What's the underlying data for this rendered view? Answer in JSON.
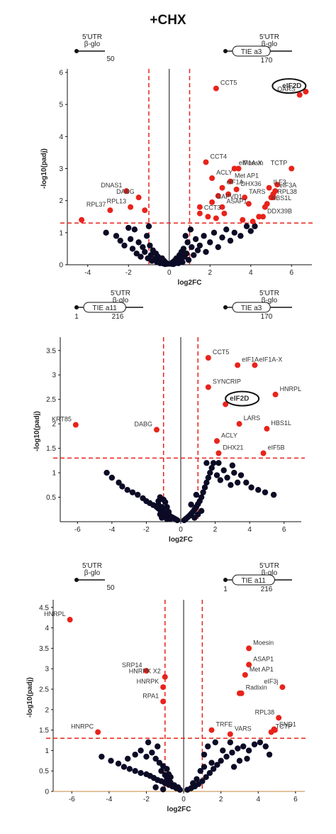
{
  "figure_title": "+CHX",
  "colors": {
    "significant": "#e8231b",
    "nonsignificant": "#0b0b26",
    "threshold": "#e8231b",
    "axis": "#111111"
  },
  "chart_data": [
    {
      "type": "scatter",
      "xlabel": "log2FC",
      "ylabel": "-log10(padj)",
      "xlim": [
        -5,
        7
      ],
      "ylim": [
        0,
        6
      ],
      "xticks": [
        -4,
        -2,
        0,
        2,
        4,
        6
      ],
      "yticks": [
        0,
        1,
        2,
        3,
        4,
        5,
        6
      ],
      "thresholds": {
        "x": [
          -1,
          1
        ],
        "y": 1.3
      },
      "constructs": [
        {
          "utr": "5'UTR",
          "reporter": "β-glo",
          "tag": "",
          "start": "",
          "end": "50",
          "side": "left"
        },
        {
          "utr": "5'UTR",
          "reporter": "β-glo",
          "tag": "TIE a3",
          "start": "",
          "end": "170",
          "side": "right"
        }
      ],
      "labeled_points": [
        {
          "label": "eIF2D",
          "x": 6.7,
          "y": 5.4,
          "circled": true
        },
        {
          "label": "QARS",
          "x": 6.4,
          "y": 5.3
        },
        {
          "label": "CCT5",
          "x": 2.3,
          "y": 5.5
        },
        {
          "label": "CCT4",
          "x": 1.8,
          "y": 3.2
        },
        {
          "label": "eIF1A-X",
          "x": 3.2,
          "y": 3.0
        },
        {
          "label": "Moesin",
          "x": 3.4,
          "y": 3.0
        },
        {
          "label": "TCTP",
          "x": 6.0,
          "y": 3.0
        },
        {
          "label": "ACLY",
          "x": 2.1,
          "y": 2.7
        },
        {
          "label": "Met AP1",
          "x": 3.0,
          "y": 2.6
        },
        {
          "label": "eIF1A",
          "x": 2.6,
          "y": 2.4
        },
        {
          "label": "ILF3",
          "x": 4.9,
          "y": 2.4
        },
        {
          "label": "DHX36",
          "x": 3.3,
          "y": 2.35
        },
        {
          "label": "eIF3A",
          "x": 5.2,
          "y": 2.3
        },
        {
          "label": "TARS",
          "x": 3.7,
          "y": 2.1
        },
        {
          "label": "RPL38",
          "x": 5.1,
          "y": 2.1
        },
        {
          "label": "GAPVD1",
          "x": 2.1,
          "y": 1.95
        },
        {
          "label": "HBS1L",
          "x": 4.8,
          "y": 1.9
        },
        {
          "label": "ASAP1",
          "x": 2.6,
          "y": 1.8
        },
        {
          "label": "CCT3",
          "x": 1.5,
          "y": 1.6
        },
        {
          "label": "DDX39B",
          "x": 4.6,
          "y": 1.5
        },
        {
          "label": "DNAS1",
          "x": -2.1,
          "y": 2.3
        },
        {
          "label": "DABG",
          "x": -1.5,
          "y": 2.1
        },
        {
          "label": "RPL13",
          "x": -1.9,
          "y": 1.8
        },
        {
          "label": "RPL37",
          "x": -2.9,
          "y": 1.7
        }
      ],
      "unlabeled_significant": [
        [
          -4.3,
          1.4
        ],
        [
          -1.2,
          1.7
        ],
        [
          1.9,
          1.5
        ],
        [
          2.3,
          1.45
        ],
        [
          2.7,
          1.6
        ],
        [
          3.6,
          1.4
        ],
        [
          4.1,
          1.35
        ],
        [
          4.4,
          1.5
        ],
        [
          5.0,
          2.1
        ],
        [
          4.7,
          1.8
        ],
        [
          5.3,
          2.5
        ],
        [
          5.1,
          2.2
        ],
        [
          3.9,
          1.9
        ],
        [
          2.4,
          2.15
        ],
        [
          2.9,
          2.2
        ],
        [
          1.5,
          1.8
        ]
      ],
      "nonsignificant": [
        [
          -3.1,
          1.0
        ],
        [
          -2.6,
          0.9
        ],
        [
          -2.4,
          0.75
        ],
        [
          -2.2,
          0.6
        ],
        [
          -1.9,
          0.8
        ],
        [
          -1.8,
          0.5
        ],
        [
          -1.7,
          1.1
        ],
        [
          -1.6,
          0.35
        ],
        [
          -1.5,
          0.7
        ],
        [
          -1.4,
          0.25
        ],
        [
          -1.3,
          0.55
        ],
        [
          -1.2,
          0.4
        ],
        [
          -1.1,
          0.9
        ],
        [
          -1.05,
          0.2
        ],
        [
          -0.95,
          0.6
        ],
        [
          -0.9,
          0.3
        ],
        [
          -0.85,
          0.12
        ],
        [
          -0.8,
          0.45
        ],
        [
          -0.7,
          0.18
        ],
        [
          -0.65,
          0.35
        ],
        [
          -0.6,
          0.08
        ],
        [
          -0.55,
          0.25
        ],
        [
          -0.5,
          0.15
        ],
        [
          -0.45,
          0.05
        ],
        [
          -0.4,
          0.1
        ],
        [
          -0.35,
          0.2
        ],
        [
          -0.3,
          0.04
        ],
        [
          -0.25,
          0.12
        ],
        [
          -0.2,
          0.02
        ],
        [
          -0.15,
          0.06
        ],
        [
          -0.1,
          0.03
        ],
        [
          0.1,
          0.03
        ],
        [
          0.15,
          0.07
        ],
        [
          0.2,
          0.02
        ],
        [
          0.25,
          0.12
        ],
        [
          0.3,
          0.05
        ],
        [
          0.35,
          0.2
        ],
        [
          0.4,
          0.1
        ],
        [
          0.45,
          0.05
        ],
        [
          0.5,
          0.3
        ],
        [
          0.55,
          0.15
        ],
        [
          0.6,
          0.4
        ],
        [
          0.65,
          0.08
        ],
        [
          0.7,
          0.5
        ],
        [
          0.75,
          0.25
        ],
        [
          0.8,
          0.9
        ],
        [
          0.85,
          0.35
        ],
        [
          0.9,
          0.7
        ],
        [
          0.95,
          0.15
        ],
        [
          1.05,
          1.1
        ],
        [
          1.1,
          0.55
        ],
        [
          1.2,
          0.3
        ],
        [
          1.3,
          0.8
        ],
        [
          1.4,
          0.45
        ],
        [
          1.5,
          0.6
        ],
        [
          1.7,
          0.9
        ],
        [
          1.8,
          0.4
        ],
        [
          2.0,
          0.7
        ],
        [
          2.2,
          1.0
        ],
        [
          2.4,
          0.55
        ],
        [
          2.6,
          0.85
        ],
        [
          2.8,
          1.1
        ],
        [
          3.0,
          0.75
        ],
        [
          3.2,
          1.0
        ],
        [
          3.5,
          0.9
        ],
        [
          3.8,
          1.2
        ],
        [
          4.0,
          1.05
        ],
        [
          4.2,
          1.2
        ],
        [
          -1.0,
          1.2
        ],
        [
          -2.0,
          1.15
        ]
      ]
    },
    {
      "type": "scatter",
      "xlabel": "log2FC",
      "ylabel": "-log10(padj)",
      "xlim": [
        -7,
        7
      ],
      "ylim": [
        0,
        3.7
      ],
      "xticks": [
        -6,
        -4,
        -2,
        0,
        2,
        4,
        6
      ],
      "yticks": [
        0.5,
        1,
        1.5,
        2,
        2.5,
        3,
        3.5
      ],
      "thresholds": {
        "x": [
          -1,
          1
        ],
        "y": 1.3
      },
      "constructs": [
        {
          "utr": "5'UTR",
          "reporter": "β-glo",
          "tag": "TIE a11",
          "start": "1",
          "end": "216",
          "side": "left"
        },
        {
          "utr": "5'UTR",
          "reporter": "β-glo",
          "tag": "TIE a3",
          "start": "",
          "end": "170",
          "side": "right"
        }
      ],
      "labeled_points": [
        {
          "label": "CCT5",
          "x": 1.6,
          "y": 3.35
        },
        {
          "label": "eIF1A",
          "x": 3.3,
          "y": 3.2
        },
        {
          "label": "eIF1A-X",
          "x": 4.3,
          "y": 3.2
        },
        {
          "label": "SYNCRIP",
          "x": 1.6,
          "y": 2.75
        },
        {
          "label": "HNRPL",
          "x": 5.5,
          "y": 2.6
        },
        {
          "label": "eIF2D",
          "x": 2.6,
          "y": 2.4,
          "circled": true
        },
        {
          "label": "LARS",
          "x": 3.4,
          "y": 2.0
        },
        {
          "label": "HBS1L",
          "x": 5.0,
          "y": 1.9
        },
        {
          "label": "ACLY",
          "x": 2.1,
          "y": 1.65
        },
        {
          "label": "DHX21",
          "x": 2.2,
          "y": 1.4
        },
        {
          "label": "eIF5B",
          "x": 4.8,
          "y": 1.4
        },
        {
          "label": "KRT85",
          "x": -6.1,
          "y": 1.98
        },
        {
          "label": "DABG",
          "x": -1.4,
          "y": 1.88
        }
      ],
      "unlabeled_significant": [],
      "nonsignificant": [
        [
          -4.3,
          1.0
        ],
        [
          -4.0,
          0.9
        ],
        [
          -3.6,
          0.8
        ],
        [
          -3.4,
          0.72
        ],
        [
          -3.1,
          0.65
        ],
        [
          -2.8,
          0.6
        ],
        [
          -2.5,
          0.55
        ],
        [
          -2.2,
          0.48
        ],
        [
          -2.0,
          0.42
        ],
        [
          -1.8,
          0.38
        ],
        [
          -1.6,
          0.34
        ],
        [
          -1.4,
          0.3
        ],
        [
          -1.3,
          0.27
        ],
        [
          -1.2,
          0.24
        ],
        [
          -1.1,
          0.22
        ],
        [
          -1.0,
          0.19
        ],
        [
          -0.9,
          0.17
        ],
        [
          -0.8,
          0.15
        ],
        [
          -0.7,
          0.13
        ],
        [
          -0.6,
          0.11
        ],
        [
          -0.5,
          0.09
        ],
        [
          -0.4,
          0.07
        ],
        [
          -0.3,
          0.05
        ],
        [
          -0.2,
          0.03
        ],
        [
          -1.2,
          0.5
        ],
        [
          -1.0,
          0.45
        ],
        [
          -0.9,
          0.4
        ],
        [
          -1.3,
          0.35
        ],
        [
          -1.1,
          0.3
        ],
        [
          -0.8,
          0.3
        ],
        [
          -1.0,
          0.25
        ],
        [
          -0.7,
          0.2
        ],
        [
          -1.2,
          0.15
        ],
        [
          -0.9,
          0.1
        ],
        [
          -0.6,
          0.06
        ],
        [
          -1.1,
          0.08
        ],
        [
          -0.8,
          0.05
        ],
        [
          -1.0,
          0.12
        ],
        [
          -1.3,
          0.42
        ],
        [
          0.2,
          0.03
        ],
        [
          0.3,
          0.06
        ],
        [
          0.4,
          0.09
        ],
        [
          0.5,
          0.12
        ],
        [
          0.6,
          0.16
        ],
        [
          0.7,
          0.2
        ],
        [
          0.8,
          0.25
        ],
        [
          0.9,
          0.3
        ],
        [
          1.0,
          0.36
        ],
        [
          1.1,
          0.42
        ],
        [
          1.2,
          0.5
        ],
        [
          1.3,
          0.6
        ],
        [
          1.4,
          0.7
        ],
        [
          1.5,
          0.8
        ],
        [
          1.6,
          0.9
        ],
        [
          1.7,
          1.0
        ],
        [
          1.8,
          1.1
        ],
        [
          1.9,
          1.2
        ],
        [
          2.1,
          0.95
        ],
        [
          2.3,
          0.85
        ],
        [
          2.5,
          1.05
        ],
        [
          2.7,
          0.9
        ],
        [
          2.9,
          0.75
        ],
        [
          3.1,
          1.0
        ],
        [
          3.3,
          0.8
        ],
        [
          3.5,
          0.95
        ],
        [
          3.8,
          0.8
        ],
        [
          4.1,
          0.7
        ],
        [
          4.5,
          0.65
        ],
        [
          4.9,
          0.6
        ],
        [
          5.4,
          0.55
        ],
        [
          1.5,
          1.2
        ],
        [
          2.2,
          1.2
        ],
        [
          3.0,
          1.15
        ],
        [
          1.0,
          0.15
        ],
        [
          0.8,
          0.08
        ],
        [
          1.2,
          0.22
        ],
        [
          0.6,
          0.35
        ],
        [
          0.9,
          0.55
        ]
      ]
    },
    {
      "type": "scatter",
      "xlabel": "log2FC",
      "ylabel": "-log10(padj)",
      "xlim": [
        -7,
        6.5
      ],
      "ylim": [
        0,
        4.6
      ],
      "xticks": [
        -6,
        -4,
        -2,
        0,
        2,
        4,
        6
      ],
      "yticks": [
        0,
        0.5,
        1,
        1.5,
        2,
        2.5,
        3,
        3.5,
        4,
        4.5
      ],
      "thresholds": {
        "x": [
          -1,
          1
        ],
        "y": 1.3
      },
      "constructs": [
        {
          "utr": "5'UTR",
          "reporter": "β-glo",
          "tag": "",
          "start": "",
          "end": "50",
          "side": "left"
        },
        {
          "utr": "5'UTR",
          "reporter": "β-glo",
          "tag": "TIE a11",
          "start": "1",
          "end": "216",
          "side": "right"
        }
      ],
      "labeled_points": [
        {
          "label": "HNRPL",
          "x": -6.1,
          "y": 4.2
        },
        {
          "label": "HNRPC",
          "x": -4.6,
          "y": 1.45
        },
        {
          "label": "SRP14",
          "x": -2.0,
          "y": 2.95
        },
        {
          "label": "HNRPK X2",
          "x": -1.0,
          "y": 2.8
        },
        {
          "label": "HNRPK",
          "x": -1.1,
          "y": 2.55
        },
        {
          "label": "RPA1",
          "x": -1.1,
          "y": 2.2
        },
        {
          "label": "Moesin",
          "x": 3.5,
          "y": 3.5
        },
        {
          "label": "ASAP1",
          "x": 3.5,
          "y": 3.1
        },
        {
          "label": "Met AP1",
          "x": 3.3,
          "y": 2.85
        },
        {
          "label": "Radixin",
          "x": 3.1,
          "y": 2.4
        },
        {
          "label": "eIF3j",
          "x": 5.3,
          "y": 2.55
        },
        {
          "label": "RPL38",
          "x": 5.1,
          "y": 1.8
        },
        {
          "label": "SND1",
          "x": 4.9,
          "y": 1.5
        },
        {
          "label": "TCTP",
          "x": 4.7,
          "y": 1.45
        },
        {
          "label": "TRFE",
          "x": 1.5,
          "y": 1.5
        },
        {
          "label": "VARS",
          "x": 2.5,
          "y": 1.4
        }
      ],
      "unlabeled_significant": [
        [
          4.85,
          1.52
        ],
        [
          3.0,
          2.4
        ]
      ],
      "nonsignificant": [
        [
          -4.4,
          0.85
        ],
        [
          -3.9,
          0.75
        ],
        [
          -3.5,
          0.68
        ],
        [
          -3.2,
          0.6
        ],
        [
          -2.9,
          0.55
        ],
        [
          -2.6,
          0.5
        ],
        [
          -2.3,
          0.45
        ],
        [
          -2.0,
          0.42
        ],
        [
          -1.8,
          0.38
        ],
        [
          -1.6,
          0.33
        ],
        [
          -1.4,
          0.28
        ],
        [
          -1.2,
          0.25
        ],
        [
          -1.0,
          0.2
        ],
        [
          -0.8,
          0.16
        ],
        [
          -0.6,
          0.12
        ],
        [
          -0.4,
          0.08
        ],
        [
          -0.2,
          0.04
        ],
        [
          -2.3,
          1.0
        ],
        [
          -2.0,
          0.85
        ],
        [
          -1.7,
          0.95
        ],
        [
          -1.5,
          0.8
        ],
        [
          -1.3,
          0.7
        ],
        [
          -1.1,
          0.62
        ],
        [
          -0.9,
          0.55
        ],
        [
          -0.8,
          0.42
        ],
        [
          -0.7,
          0.35
        ],
        [
          -1.2,
          0.5
        ],
        [
          -1.0,
          0.4
        ],
        [
          -0.9,
          0.3
        ],
        [
          -0.7,
          0.22
        ],
        [
          -0.5,
          0.15
        ],
        [
          -0.3,
          0.1
        ],
        [
          -1.4,
          1.1
        ],
        [
          -1.9,
          1.2
        ],
        [
          -2.6,
          0.9
        ],
        [
          -3.0,
          0.8
        ],
        [
          -1.1,
          0.05
        ],
        [
          -1.5,
          0.1
        ],
        [
          0.2,
          0.04
        ],
        [
          0.4,
          0.08
        ],
        [
          0.6,
          0.12
        ],
        [
          0.8,
          0.18
        ],
        [
          1.0,
          0.25
        ],
        [
          1.2,
          0.35
        ],
        [
          1.4,
          0.45
        ],
        [
          1.6,
          0.55
        ],
        [
          1.8,
          0.65
        ],
        [
          2.0,
          0.75
        ],
        [
          2.3,
          0.85
        ],
        [
          2.6,
          0.95
        ],
        [
          2.9,
          1.05
        ],
        [
          3.2,
          1.1
        ],
        [
          3.5,
          1.0
        ],
        [
          3.8,
          1.15
        ],
        [
          4.1,
          1.2
        ],
        [
          4.4,
          1.1
        ],
        [
          1.1,
          0.9
        ],
        [
          1.3,
          1.1
        ],
        [
          1.5,
          0.7
        ],
        [
          1.7,
          1.2
        ],
        [
          2.1,
          1.0
        ],
        [
          2.5,
          1.2
        ],
        [
          0.9,
          0.5
        ],
        [
          1.1,
          0.6
        ],
        [
          0.7,
          0.3
        ],
        [
          0.5,
          0.2
        ],
        [
          3.0,
          0.75
        ],
        [
          2.7,
          0.6
        ],
        [
          3.4,
          0.8
        ],
        [
          4.6,
          0.9
        ]
      ]
    }
  ]
}
